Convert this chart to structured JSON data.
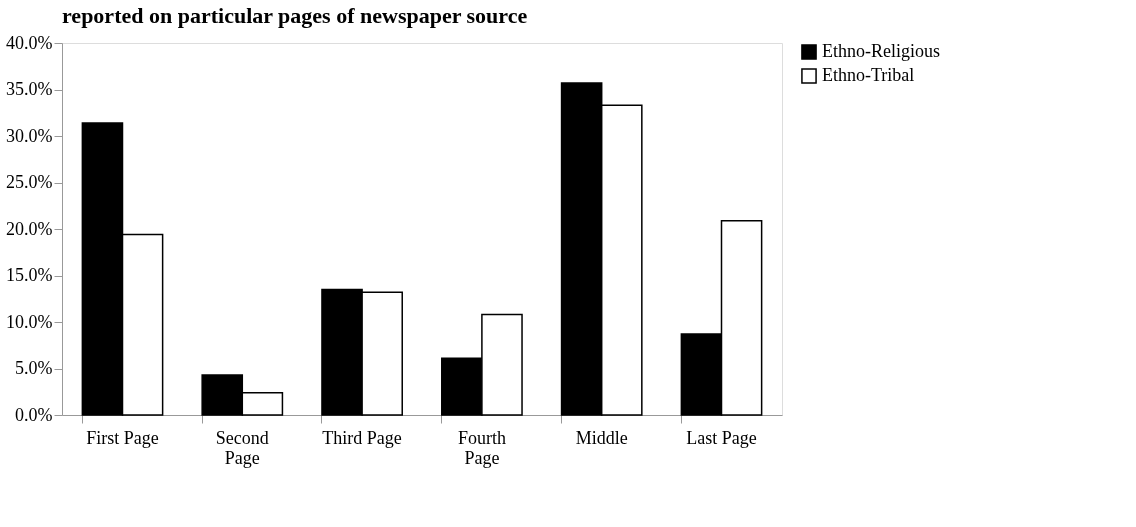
{
  "chart_data": {
    "type": "bar",
    "title": "reported on particular pages of newspaper source",
    "categories": [
      "First Page",
      "Second Page",
      "Third Page",
      "Fourth Page",
      "Middle",
      "Last Page"
    ],
    "series": [
      {
        "name": "Ethno-Religious",
        "color": "#000000",
        "values": [
          31.4,
          4.3,
          13.5,
          6.1,
          35.7,
          8.7
        ]
      },
      {
        "name": "Ethno-Tribal",
        "color": "#ffffff",
        "values": [
          19.4,
          2.4,
          13.2,
          10.8,
          33.3,
          20.9
        ]
      }
    ],
    "ylim": [
      0,
      40
    ],
    "yticks": [
      {
        "value": 0,
        "label": "0.0%"
      },
      {
        "value": 5,
        "label": "5.0%"
      },
      {
        "value": 10,
        "label": "10.0%"
      },
      {
        "value": 15,
        "label": "15.0%"
      },
      {
        "value": 20,
        "label": "20.0%"
      },
      {
        "value": 25,
        "label": "25.0%"
      },
      {
        "value": 30,
        "label": "30.0%"
      },
      {
        "value": 35,
        "label": "35.0%"
      },
      {
        "value": 40,
        "label": "40.0%"
      }
    ],
    "grid": false,
    "legend": "right"
  }
}
